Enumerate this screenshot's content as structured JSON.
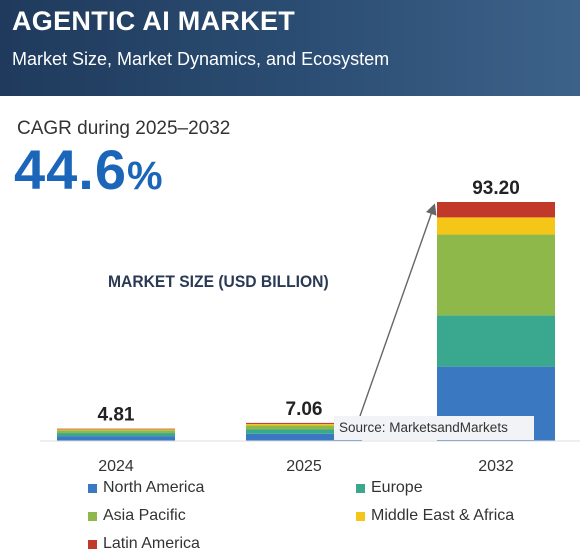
{
  "header": {
    "title": "AGENTIC AI MARKET",
    "subtitle": "Market Size, Market Dynamics, and Ecosystem"
  },
  "cagr": {
    "label": "CAGR during 2025–2032",
    "value": "44.6",
    "unit": "%"
  },
  "source": "Source: MarketsandMarkets",
  "colors": {
    "accent": "#1b66b8",
    "header_bg": "#2c4e74"
  },
  "chart_data": {
    "type": "bar",
    "stacked": true,
    "title": "MARKET SIZE (USD BILLION)",
    "categories": [
      "2024",
      "2025",
      "2032"
    ],
    "totals": [
      "4.81",
      "7.06",
      "93.20"
    ],
    "series": [
      {
        "name": "North America",
        "color": "#3a78c2",
        "values": [
          1.9,
          2.8,
          29.0
        ]
      },
      {
        "name": "Europe",
        "color": "#3aa88e",
        "values": [
          1.2,
          1.7,
          20.0
        ]
      },
      {
        "name": "Asia Pacific",
        "color": "#8fb84a",
        "values": [
          1.1,
          1.6,
          31.5
        ]
      },
      {
        "name": "Middle East & Africa",
        "color": "#f5c518",
        "values": [
          0.35,
          0.55,
          6.7
        ]
      },
      {
        "name": "Latin America",
        "color": "#c0392b",
        "values": [
          0.26,
          0.41,
          6.0
        ]
      }
    ],
    "ylim": [
      0,
      93.2
    ],
    "grid": false,
    "legend_position": "bottom"
  }
}
